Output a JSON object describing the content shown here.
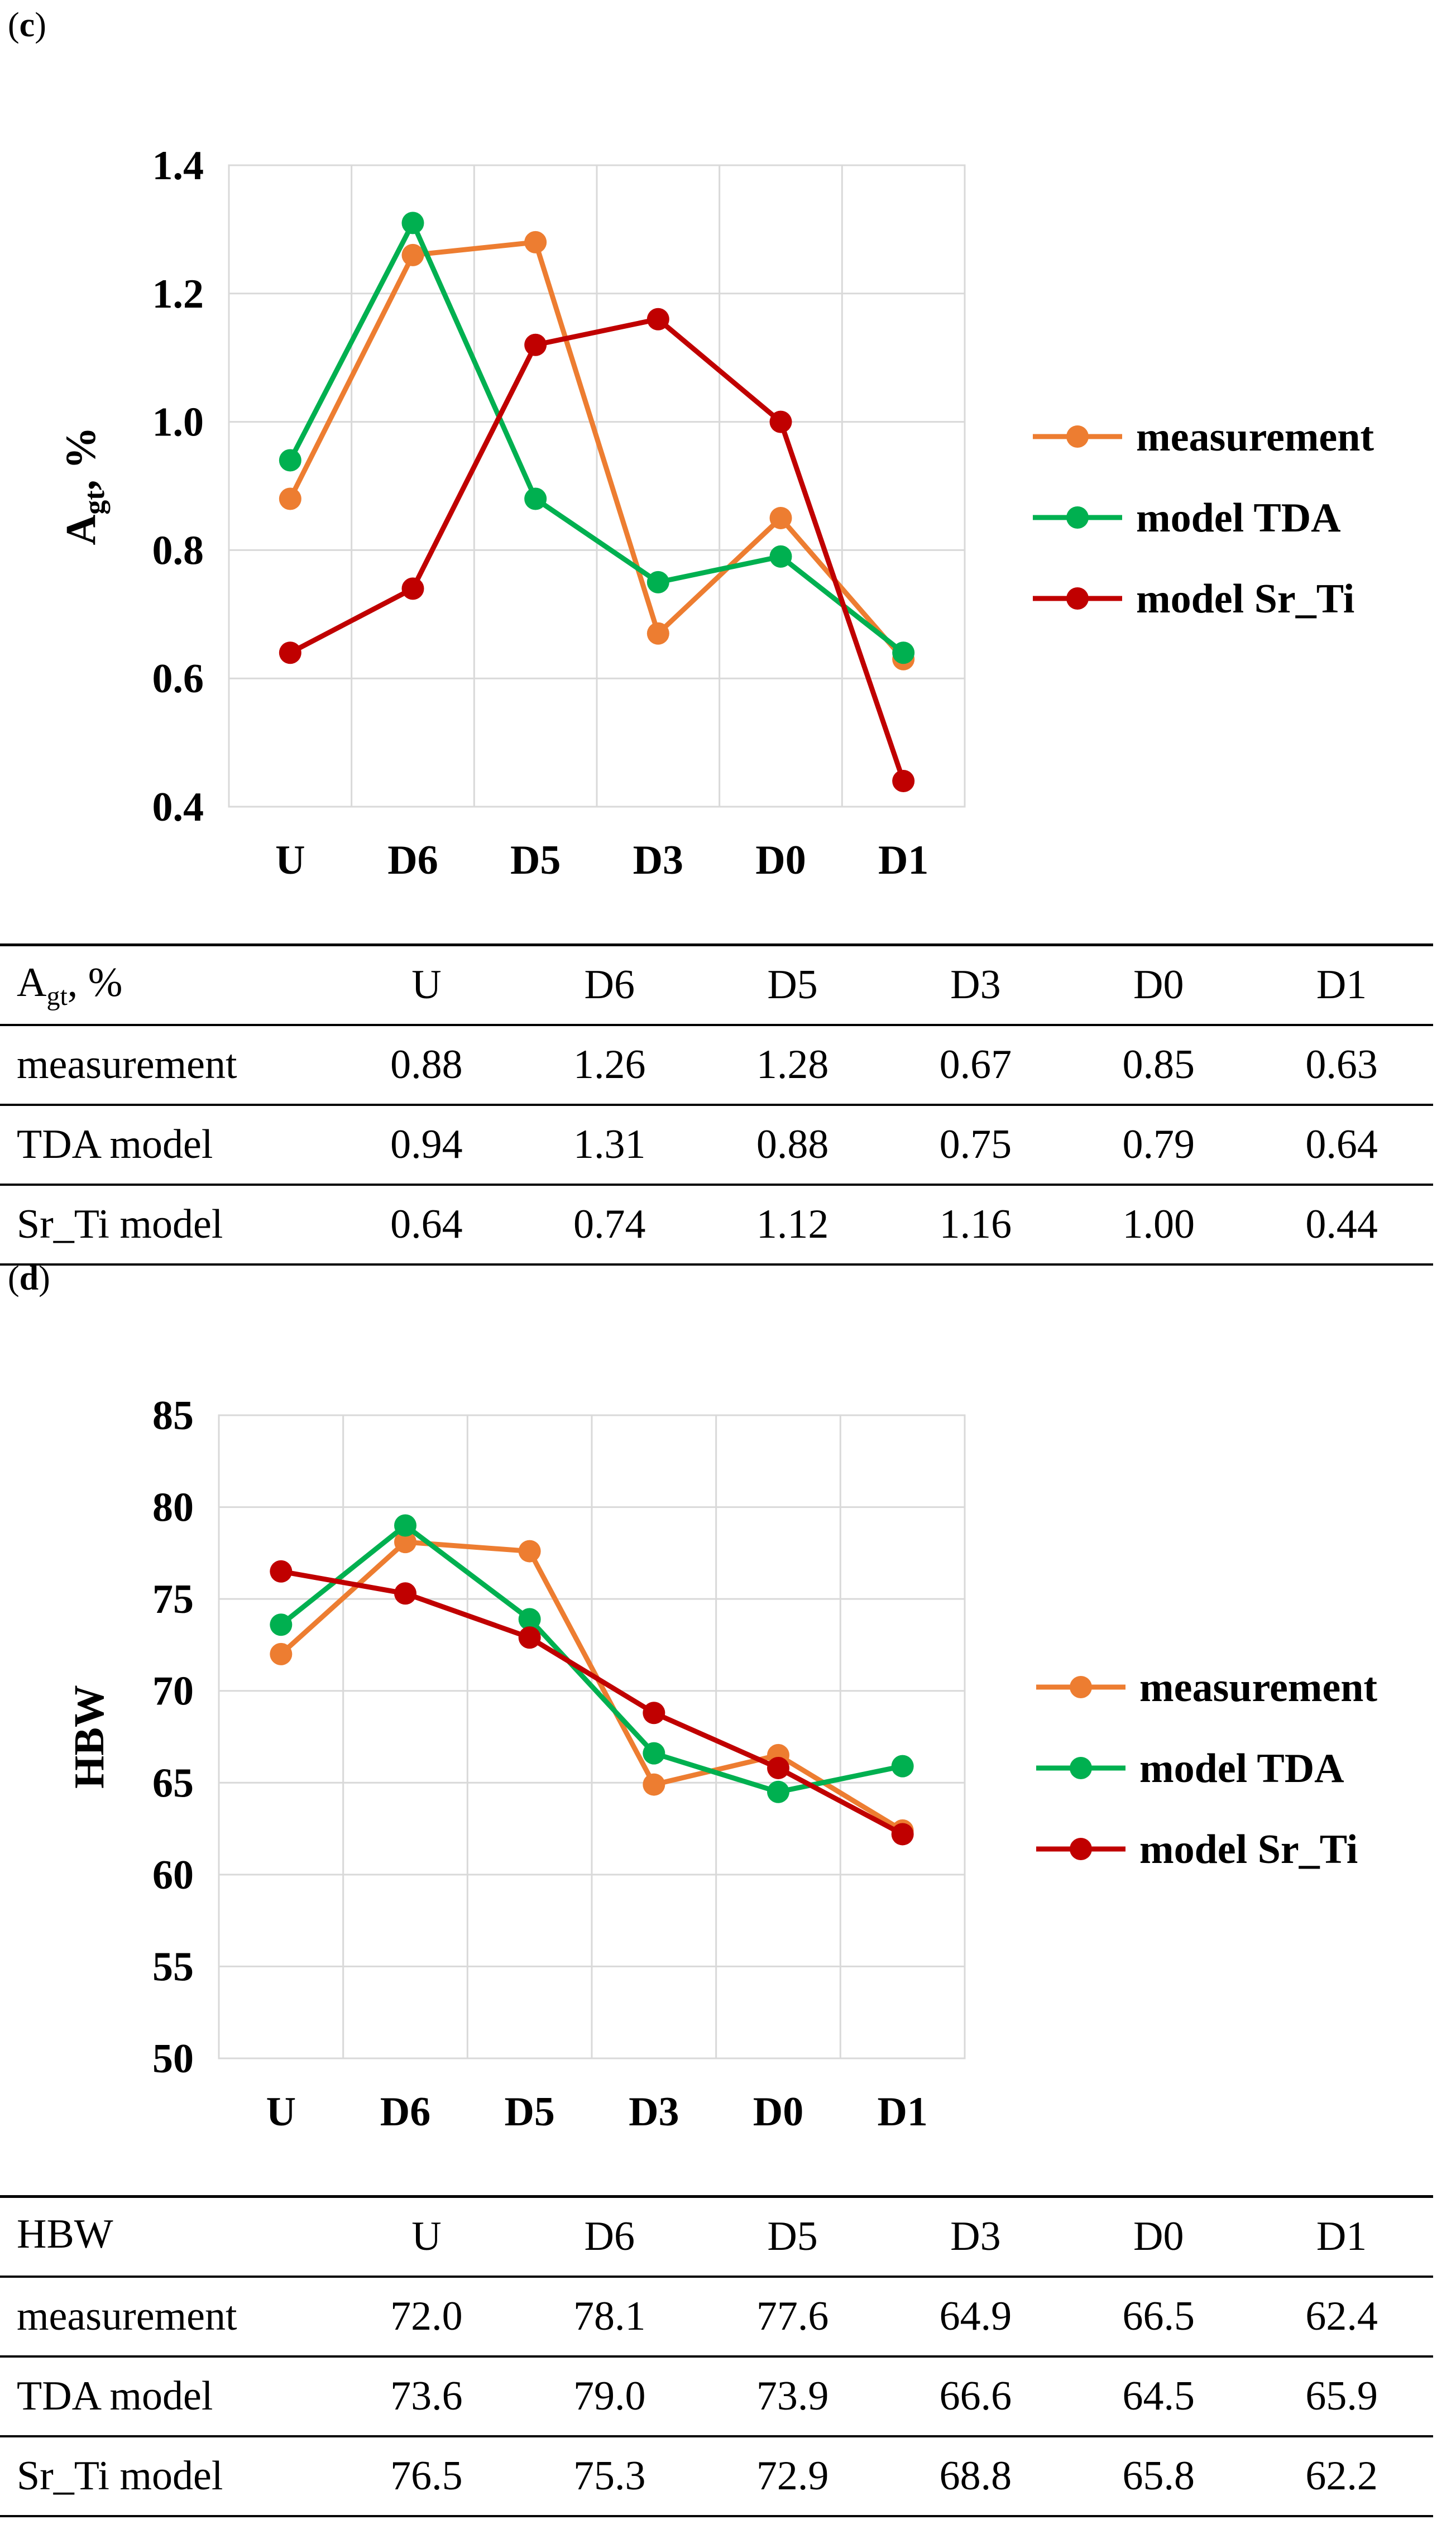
{
  "panels": {
    "c": {
      "label_open": "(",
      "label_letter": "c",
      "label_close": ")"
    },
    "d": {
      "label_open": "(",
      "label_letter": "d",
      "label_close": ")"
    }
  },
  "colors": {
    "measurement": "#ED7D31",
    "model_tda": "#00B050",
    "model_sr_ti": "#C00000",
    "grid": "#D9D9D9"
  },
  "chart_data": [
    {
      "id": "c",
      "type": "line",
      "categories": [
        "U",
        "D6",
        "D5",
        "D3",
        "D0",
        "D1"
      ],
      "series": [
        {
          "key": "measurement",
          "name": "measurement",
          "values": [
            0.88,
            1.26,
            1.28,
            0.67,
            0.85,
            0.63
          ]
        },
        {
          "key": "model_tda",
          "name": "model TDA",
          "values": [
            0.94,
            1.31,
            0.88,
            0.75,
            0.79,
            0.64
          ]
        },
        {
          "key": "model_sr_ti",
          "name": "model Sr_Ti",
          "values": [
            0.64,
            0.74,
            1.12,
            1.16,
            1.0,
            0.44
          ]
        }
      ],
      "ylabel_main": "A",
      "ylabel_sub": "gt",
      "ylabel_tail": ", %",
      "ylim": [
        0.4,
        1.4
      ],
      "yticks": [
        0.4,
        0.6,
        0.8,
        1.0,
        1.2,
        1.4
      ],
      "ytick_labels": [
        "0.4",
        "0.6",
        "0.8",
        "1.0",
        "1.2",
        "1.4"
      ],
      "grid": true,
      "legend": "right"
    },
    {
      "id": "d",
      "type": "line",
      "categories": [
        "U",
        "D6",
        "D5",
        "D3",
        "D0",
        "D1"
      ],
      "series": [
        {
          "key": "measurement",
          "name": "measurement",
          "values": [
            72.0,
            78.1,
            77.6,
            64.9,
            66.5,
            62.4
          ]
        },
        {
          "key": "model_tda",
          "name": "model TDA",
          "values": [
            73.6,
            79.0,
            73.9,
            66.6,
            64.5,
            65.9
          ]
        },
        {
          "key": "model_sr_ti",
          "name": "model Sr_Ti",
          "values": [
            76.5,
            75.3,
            72.9,
            68.8,
            65.8,
            62.2
          ]
        }
      ],
      "ylabel_main": "HBW",
      "ylabel_sub": "",
      "ylabel_tail": "",
      "ylim": [
        50,
        85
      ],
      "yticks": [
        50,
        55,
        60,
        65,
        70,
        75,
        80,
        85
      ],
      "ytick_labels": [
        "50",
        "55",
        "60",
        "65",
        "70",
        "75",
        "80",
        "85"
      ],
      "grid": true,
      "legend": "right"
    }
  ],
  "tables": {
    "c": {
      "header_main": "A",
      "header_sub": "gt",
      "header_tail": ", %",
      "columns": [
        "U",
        "D6",
        "D5",
        "D3",
        "D0",
        "D1"
      ],
      "rows": [
        {
          "label": "measurement",
          "values": [
            "0.88",
            "1.26",
            "1.28",
            "0.67",
            "0.85",
            "0.63"
          ]
        },
        {
          "label": "TDA model",
          "values": [
            "0.94",
            "1.31",
            "0.88",
            "0.75",
            "0.79",
            "0.64"
          ]
        },
        {
          "label": "Sr_Ti model",
          "values": [
            "0.64",
            "0.74",
            "1.12",
            "1.16",
            "1.00",
            "0.44"
          ]
        }
      ]
    },
    "d": {
      "header_main": "HBW",
      "header_sub": "",
      "header_tail": "",
      "columns": [
        "U",
        "D6",
        "D5",
        "D3",
        "D0",
        "D1"
      ],
      "rows": [
        {
          "label": "measurement",
          "values": [
            "72.0",
            "78.1",
            "77.6",
            "64.9",
            "66.5",
            "62.4"
          ]
        },
        {
          "label": "TDA model",
          "values": [
            "73.6",
            "79.0",
            "73.9",
            "66.6",
            "64.5",
            "65.9"
          ]
        },
        {
          "label": "Sr_Ti model",
          "values": [
            "76.5",
            "75.3",
            "72.9",
            "68.8",
            "65.8",
            "62.2"
          ]
        }
      ]
    }
  }
}
